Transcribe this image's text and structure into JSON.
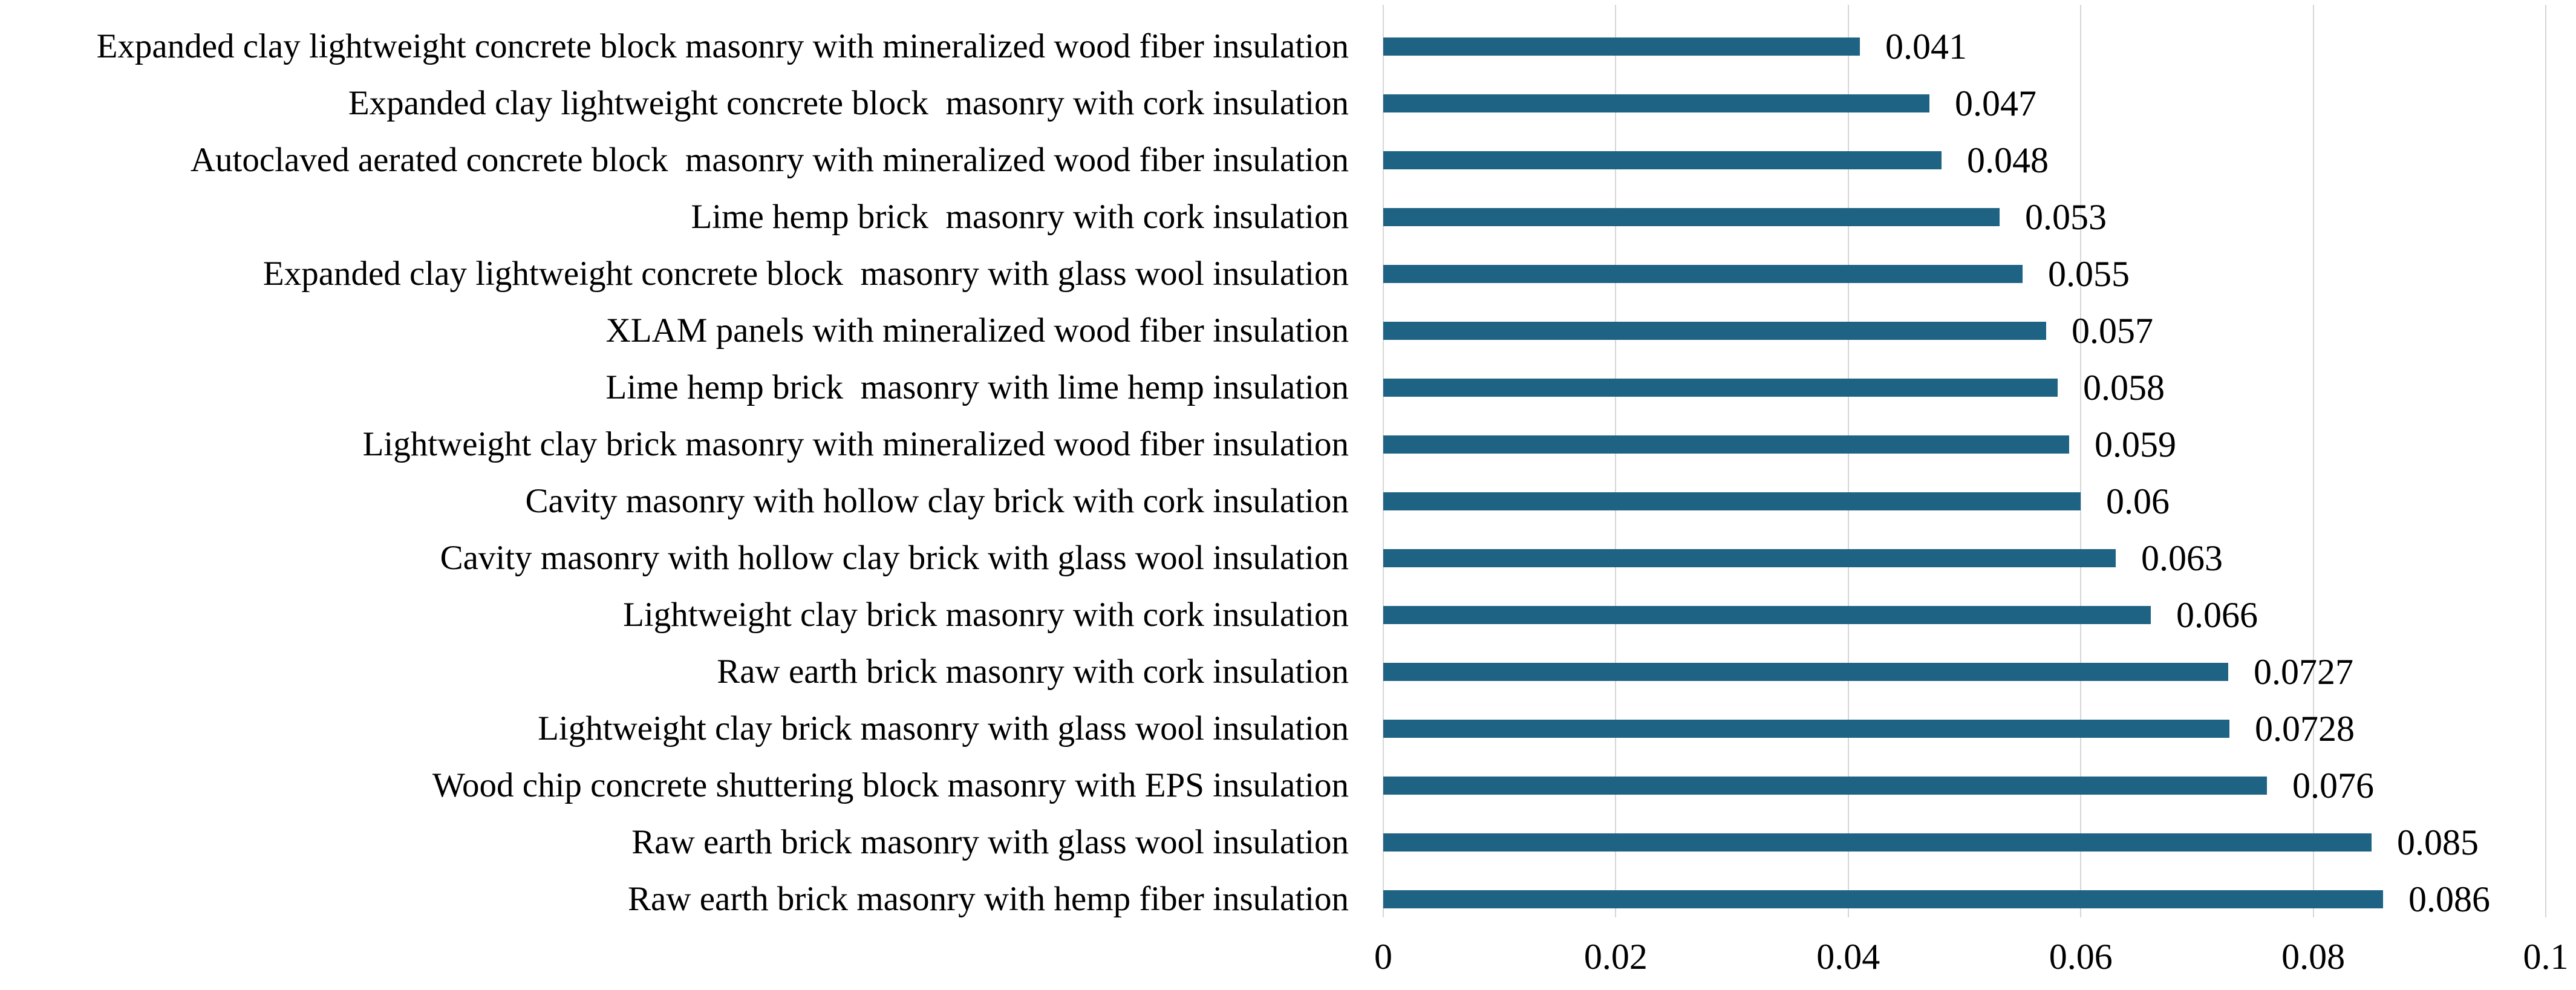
{
  "chart_data": {
    "type": "bar",
    "orientation": "horizontal",
    "title": "",
    "categories": [
      "Expanded clay lightweight concrete block masonry with mineralized wood fiber insulation",
      "Expanded clay lightweight concrete block  masonry with cork insulation",
      "Autoclaved aerated concrete block  masonry with mineralized wood fiber insulation",
      "Lime hemp brick  masonry with cork insulation",
      "Expanded clay lightweight concrete block  masonry with glass wool insulation",
      "XLAM panels with mineralized wood fiber insulation",
      "Lime hemp brick  masonry with lime hemp insulation",
      "Lightweight clay brick masonry with mineralized wood fiber insulation",
      "Cavity masonry with hollow clay brick with cork insulation",
      "Cavity masonry with hollow clay brick with glass wool insulation",
      "Lightweight clay brick masonry with cork insulation",
      "Raw earth brick masonry with cork insulation",
      "Lightweight clay brick masonry with glass wool insulation",
      "Wood chip concrete shuttering block masonry with EPS insulation",
      "Raw earth brick masonry with glass wool insulation",
      "Raw earth brick masonry with hemp fiber insulation"
    ],
    "values": [
      0.041,
      0.047,
      0.048,
      0.053,
      0.055,
      0.057,
      0.058,
      0.059,
      0.06,
      0.063,
      0.066,
      0.0727,
      0.0728,
      0.076,
      0.085,
      0.086
    ],
    "value_labels": [
      "0.041",
      "0.047",
      "0.048",
      "0.053",
      "0.055",
      "0.057",
      "0.058",
      "0.059",
      "0.06",
      "0.063",
      "0.066",
      "0.0727",
      "0.0728",
      "0.076",
      "0.085",
      "0.086"
    ],
    "xlabel": "",
    "ylabel": "",
    "xlim": [
      0,
      0.1
    ],
    "x_ticks": [
      "0",
      "0.02",
      "0.04",
      "0.06",
      "0.08",
      "0.1"
    ],
    "x_tick_values": [
      0,
      0.02,
      0.04,
      0.06,
      0.08,
      0.1
    ],
    "grid": true,
    "legend_position": "none",
    "bar_color": "#1e6384",
    "gridline_color": "#d6d6d6",
    "text_color": "#000000",
    "background_color": "#ffffff"
  }
}
